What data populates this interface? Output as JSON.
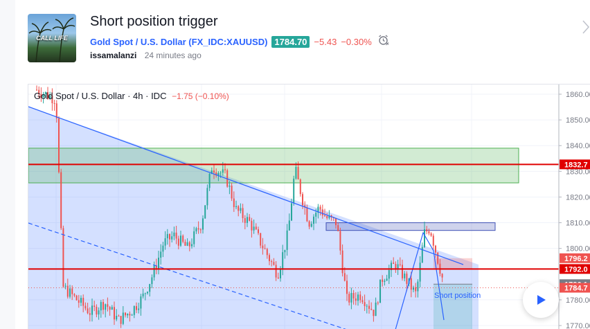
{
  "idea": {
    "title": "Short position trigger",
    "symbol_name": "Gold Spot / U.S. Dollar",
    "symbol_ticker": "(FX_IDC:XAUUSD)",
    "price": "1784.70",
    "change": "−5.43",
    "change_pct": "−0.30%",
    "author": "issamalanzi",
    "time_ago": "24 minutes ago",
    "thumbnail_text": "CALL LIFE"
  },
  "chart": {
    "legend_title": "Gold Spot / U.S. Dollar · 4h · IDC",
    "legend_change": "−1.75 (−0.10%)",
    "y_ticks": [
      {
        "value": 1860,
        "label": "1860.00"
      },
      {
        "value": 1850,
        "label": "1850.00"
      },
      {
        "value": 1840,
        "label": "1840.00"
      },
      {
        "value": 1830,
        "label": "1830.00"
      },
      {
        "value": 1820,
        "label": "1820.00"
      },
      {
        "value": 1810,
        "label": "1810.00"
      },
      {
        "value": 1800,
        "label": "1800.00"
      },
      {
        "value": 1780,
        "label": "1780.00"
      },
      {
        "value": 1770,
        "label": "1770.00"
      }
    ],
    "price_labels": [
      {
        "value": 1832.7,
        "label": "1832.7",
        "color": "#e00000"
      },
      {
        "value": 1796.2,
        "label": "1796.2",
        "color": "#ef5350"
      },
      {
        "value": 1792.0,
        "label": "1792.0",
        "color": "#e00000"
      },
      {
        "value": 1786.1,
        "label": "1786.1",
        "color": "#787b86"
      },
      {
        "value": 1784.7,
        "label": "1784.7",
        "color": "#ef5350"
      }
    ],
    "position_label": "Short position",
    "colors": {
      "up": "#26a69a",
      "down": "#ef5350",
      "trend": "#2962ff",
      "level": "#e00000"
    }
  }
}
